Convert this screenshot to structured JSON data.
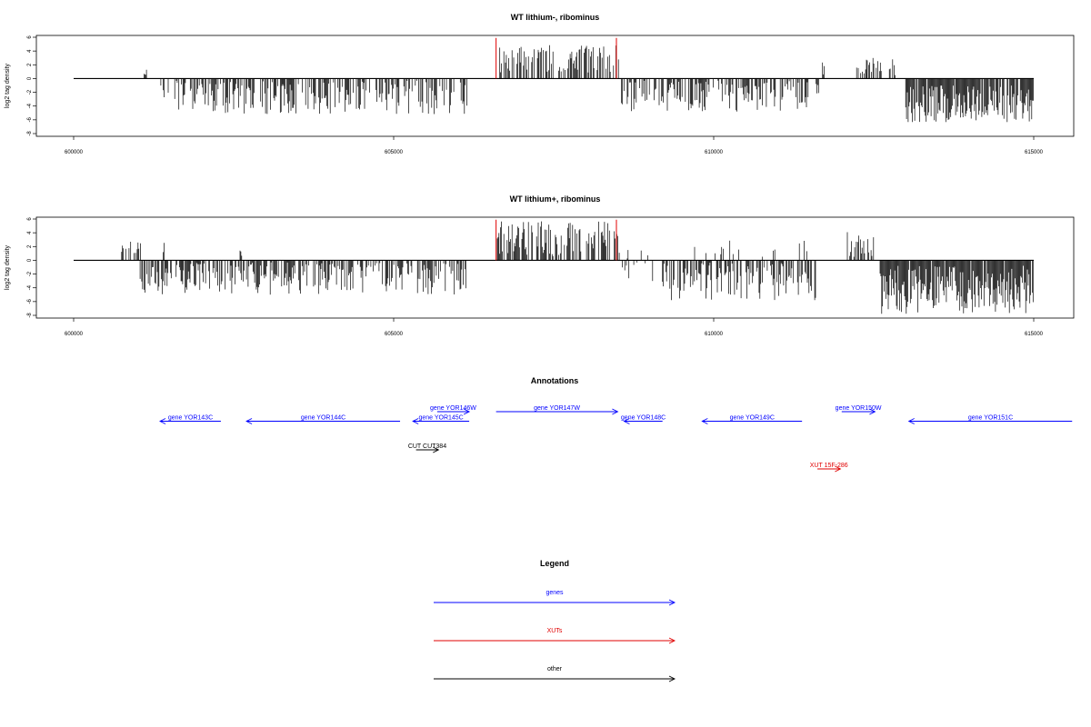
{
  "chart_data": [
    {
      "type": "bar",
      "title": "WT lithium-, ribominus",
      "ylabel": "log2 tag density",
      "xlim": [
        600000,
        615000
      ],
      "ylim": [
        -8,
        6
      ],
      "xticks": [
        600000,
        605000,
        610000,
        615000
      ],
      "yticks": [
        6,
        4,
        2,
        0,
        -2,
        -4,
        -6,
        -8
      ],
      "highlight_color": "#e00000",
      "bar_color": "#000000",
      "highlight_positions": [
        606600,
        608480
      ],
      "segments": [
        {
          "start": 601100,
          "end": 601150,
          "min": 0.2,
          "max": 1.5,
          "density": 1,
          "seed": 11
        },
        {
          "start": 601350,
          "end": 606150,
          "min": -5.2,
          "max": -0.3,
          "density": 0.55,
          "seed": 12
        },
        {
          "start": 606620,
          "end": 608520,
          "min": 0.5,
          "max": 4.9,
          "density": 0.5,
          "seed": 13
        },
        {
          "start": 608560,
          "end": 611500,
          "min": -4.8,
          "max": -0.3,
          "density": 0.55,
          "seed": 14
        },
        {
          "start": 611700,
          "end": 611730,
          "min": 0.5,
          "max": 3.8,
          "density": 1,
          "seed": 15
        },
        {
          "start": 611600,
          "end": 611650,
          "min": -2.5,
          "max": -0.5,
          "density": 1,
          "seed": 16
        },
        {
          "start": 612220,
          "end": 612900,
          "min": 0.3,
          "max": 3.0,
          "density": 0.4,
          "seed": 17
        },
        {
          "start": 613000,
          "end": 615000,
          "min": -6.5,
          "max": -1.0,
          "density": 0.9,
          "seed": 18
        }
      ]
    },
    {
      "type": "bar",
      "title": "WT lithium+, ribominus",
      "ylabel": "log2 tag density",
      "xlim": [
        600000,
        615000
      ],
      "ylim": [
        -8,
        6
      ],
      "xticks": [
        600000,
        605000,
        610000,
        615000
      ],
      "yticks": [
        6,
        4,
        2,
        0,
        -2,
        -4,
        -6,
        -8
      ],
      "highlight_color": "#e00000",
      "bar_color": "#000000",
      "highlight_positions": [
        606600,
        608480
      ],
      "segments": [
        {
          "start": 600750,
          "end": 601050,
          "min": 0.5,
          "max": 2.7,
          "density": 0.4,
          "seed": 21
        },
        {
          "start": 601400,
          "end": 601420,
          "min": 1.0,
          "max": 3.2,
          "density": 1,
          "seed": 22
        },
        {
          "start": 601000,
          "end": 606150,
          "min": -5.0,
          "max": -0.3,
          "density": 0.6,
          "seed": 23
        },
        {
          "start": 602600,
          "end": 602630,
          "min": 0.5,
          "max": 1.8,
          "density": 1,
          "seed": 24
        },
        {
          "start": 606620,
          "end": 608550,
          "min": 0.5,
          "max": 5.7,
          "density": 0.65,
          "seed": 25
        },
        {
          "start": 608560,
          "end": 609100,
          "min": -3.5,
          "max": 2.5,
          "density": 0.4,
          "seed": 26
        },
        {
          "start": 609200,
          "end": 611600,
          "min": -5.8,
          "max": -0.3,
          "density": 0.65,
          "seed": 27
        },
        {
          "start": 609600,
          "end": 611600,
          "min": 0.3,
          "max": 3.0,
          "density": 0.1,
          "seed": 28
        },
        {
          "start": 612050,
          "end": 612500,
          "min": 0.5,
          "max": 4.4,
          "density": 0.6,
          "seed": 29
        },
        {
          "start": 612600,
          "end": 615000,
          "min": -7.8,
          "max": -0.8,
          "density": 0.95,
          "seed": 30
        }
      ]
    }
  ],
  "annotations": {
    "title": "Annotations",
    "features": [
      {
        "label": "gene YOR143C",
        "start": 602300,
        "end": 601350,
        "row": 1,
        "color": "#0000ff"
      },
      {
        "label": "gene YOR144C",
        "start": 605100,
        "end": 602700,
        "row": 1,
        "color": "#0000ff"
      },
      {
        "label": "gene YOR145C",
        "start": 606180,
        "end": 605300,
        "row": 1,
        "color": "#0000ff"
      },
      {
        "label": "gene YOR146W",
        "start": 605680,
        "end": 606180,
        "row": 0,
        "color": "#0000ff"
      },
      {
        "label": "gene YOR147W",
        "start": 606600,
        "end": 608500,
        "row": 0,
        "color": "#0000ff"
      },
      {
        "label": "gene YOR148C",
        "start": 609200,
        "end": 608600,
        "row": 1,
        "color": "#0000ff"
      },
      {
        "label": "gene YOR149C",
        "start": 611380,
        "end": 609820,
        "row": 1,
        "color": "#0000ff"
      },
      {
        "label": "gene YOR150W",
        "start": 612000,
        "end": 612520,
        "row": 0,
        "color": "#0000ff"
      },
      {
        "label": "gene YOR151C",
        "start": 615600,
        "end": 613050,
        "row": 1,
        "color": "#0000ff"
      },
      {
        "label": "CUT CUT384",
        "start": 605350,
        "end": 605700,
        "row": 4,
        "color": "#000000"
      },
      {
        "label": "XUT 15F-286",
        "start": 611620,
        "end": 611980,
        "row": 6,
        "color": "#e00000"
      }
    ]
  },
  "legend": {
    "title": "Legend",
    "items": [
      {
        "label": "genes",
        "color": "#0000ff"
      },
      {
        "label": "XUTs",
        "color": "#e00000"
      },
      {
        "label": "other",
        "color": "#000000"
      }
    ]
  }
}
